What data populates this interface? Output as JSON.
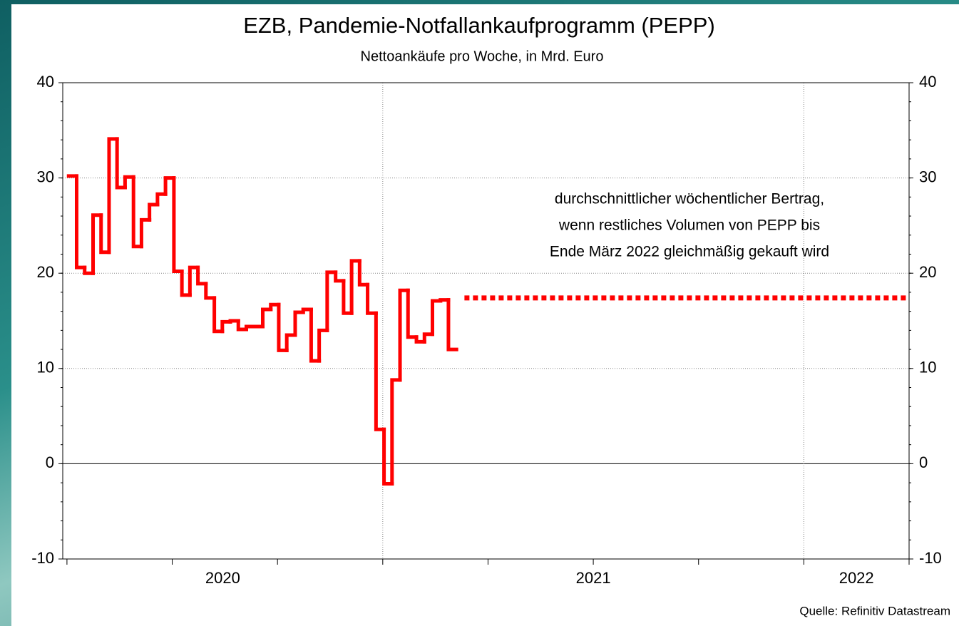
{
  "chart_data": {
    "type": "step",
    "title": "EZB, Pandemie-Notfallankaufprogramm (PEPP)",
    "subtitle": "Nettoankäufe pro Woche, in Mrd. Euro",
    "source": "Quelle: Refinitiv Datastream",
    "annotation": [
      "durchschnittlicher wöchentlicher Bertrag,",
      "wenn restliches Volumen von PEPP bis",
      "Ende März 2022 gleichmäßig gekauft wird"
    ],
    "color": "#ff0000",
    "x": [
      2020.254,
      2020.273,
      2020.292,
      2020.312,
      2020.331,
      2020.35,
      2020.369,
      2020.388,
      2020.408,
      2020.427,
      2020.446,
      2020.465,
      2020.484,
      2020.504,
      2020.523,
      2020.542,
      2020.561,
      2020.58,
      2020.6,
      2020.619,
      2020.638,
      2020.657,
      2020.676,
      2020.696,
      2020.715,
      2020.734,
      2020.753,
      2020.772,
      2020.792,
      2020.811,
      2020.83,
      2020.849,
      2020.868,
      2020.888,
      2020.907,
      2020.926,
      2020.945,
      2020.964,
      2020.984,
      2021.003,
      2021.022,
      2021.041,
      2021.06,
      2021.08,
      2021.099,
      2021.118,
      2021.137,
      2021.156
    ],
    "values": [
      30.2,
      20.6,
      20.0,
      26.1,
      22.2,
      34.1,
      29.0,
      30.1,
      22.8,
      25.6,
      27.2,
      28.3,
      30.0,
      20.2,
      17.7,
      20.6,
      18.9,
      17.4,
      13.9,
      14.9,
      15.0,
      14.1,
      14.4,
      14.4,
      16.2,
      16.7,
      11.9,
      13.5,
      15.9,
      16.2,
      10.8,
      14.0,
      20.1,
      19.2,
      15.8,
      21.3,
      18.8,
      15.8,
      3.6,
      -2.1,
      8.8,
      18.2,
      13.3,
      12.8,
      13.6,
      17.1,
      17.2,
      12.0
    ],
    "target": {
      "x": [
        2021.194,
        2022.25
      ],
      "values": [
        17.4,
        17.4
      ],
      "color": "#ff0000",
      "style": "dotted"
    },
    "xlim": [
      2020.24,
      2022.25
    ],
    "xticks": [
      2020.25,
      2020.5,
      2020.75,
      2021,
      2021.25,
      2021.5,
      2021.75,
      2022,
      2022.25
    ],
    "year_labels": [
      2020,
      2021,
      2022
    ],
    "ylim": [
      -10,
      40
    ],
    "yticks": [
      -10,
      0,
      10,
      20,
      30,
      40
    ],
    "y_minor_step": 2,
    "grid": true
  }
}
